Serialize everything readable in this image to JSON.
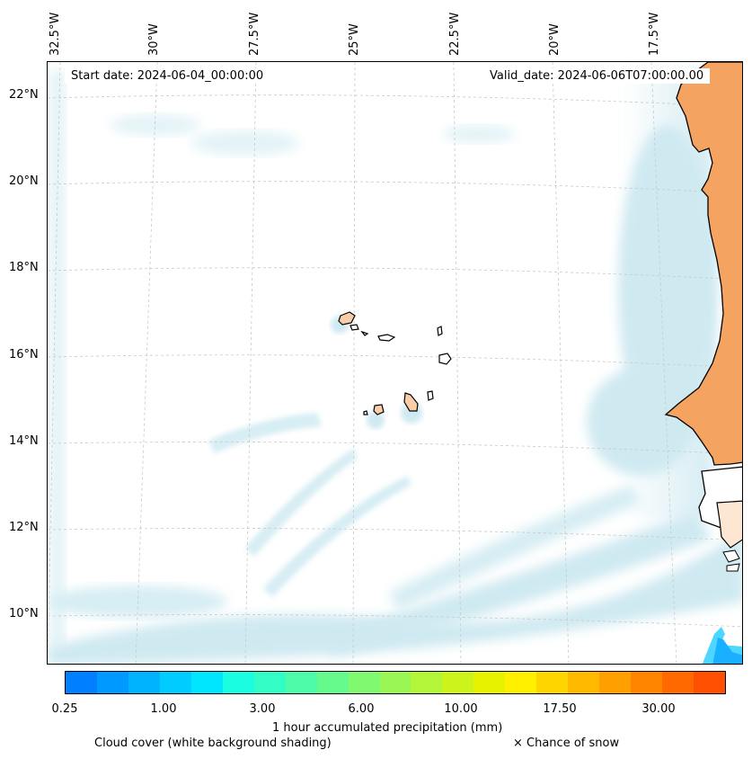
{
  "header": {
    "start_date": "Start date: 2024-06-04_00:00:00",
    "valid_date": "Valid_date: 2024-06-06T07:00:00.00"
  },
  "longitude_labels": [
    "32.5°W",
    "30°W",
    "27.5°W",
    "25°W",
    "22.5°W",
    "20°W",
    "17.5°W"
  ],
  "latitude_labels": [
    "22°N",
    "20°N",
    "18°N",
    "16°N",
    "14°N",
    "12°N",
    "10°N"
  ],
  "colorbar": {
    "colors": [
      "#0080ff",
      "#0099ff",
      "#00b3ff",
      "#00ccff",
      "#00e6ff",
      "#1afde0",
      "#33fcc4",
      "#4dfba8",
      "#66f98c",
      "#80f870",
      "#99f654",
      "#b3f538",
      "#ccf31c",
      "#e6f200",
      "#fff000",
      "#ffd500",
      "#ffba00",
      "#ff9f00",
      "#ff8400",
      "#ff6900",
      "#ff4f00"
    ],
    "tick_labels": [
      "0.25",
      "1.00",
      "3.00",
      "6.00",
      "10.00",
      "17.50",
      "30.00"
    ],
    "label": "1 hour accumulated precipitation (mm)"
  },
  "legend": {
    "cloud_cover": "Cloud cover (white background shading)",
    "snow": "× Chance of snow"
  },
  "colors": {
    "land": "#f4a460",
    "cloud": "#a8d8e6",
    "island": "#f8cda8"
  }
}
